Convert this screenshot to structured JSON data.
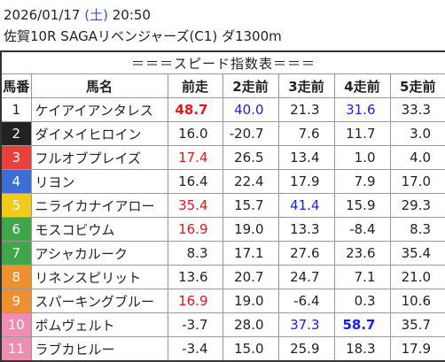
{
  "header": {
    "date": "2026/01/17",
    "weekday": "(土)",
    "time": "20:50",
    "race": "佐賀10R SAGAリベンジャーズ(C1) ダ1300m"
  },
  "table": {
    "title": "＝＝＝スピード指数表＝＝＝",
    "columns": [
      "馬番",
      "馬名",
      "前走",
      "2走前",
      "3走前",
      "4走前",
      "5走前"
    ],
    "rows": [
      {
        "no": "1",
        "frame_color": "#ffffff",
        "no_color": "#222222",
        "name": "ケイアイアンタレス",
        "indices": [
          {
            "text": "48.7",
            "color": "#e8141c",
            "bold": true
          },
          {
            "text": "40.0",
            "color": "#1a1aff"
          },
          "21.3",
          {
            "text": "31.6",
            "color": "#1a1aff"
          },
          "33.3"
        ]
      },
      {
        "no": "2",
        "frame_color": "#222222",
        "no_color": "#ffffff",
        "name": "ダイメイヒロイン",
        "indices": [
          "16.0",
          "-20.7",
          "7.6",
          "11.7",
          "3.0"
        ]
      },
      {
        "no": "3",
        "frame_color": "#e8403c",
        "no_color": "#ffffff",
        "name": "フルオブプレイズ",
        "indices": [
          {
            "text": "17.4",
            "color": "#e8141c"
          },
          "26.5",
          "13.4",
          "1.0",
          "4.0"
        ]
      },
      {
        "no": "4",
        "frame_color": "#3c6fd6",
        "no_color": "#ffffff",
        "name": "リヨン",
        "indices": [
          "16.4",
          "22.4",
          "17.9",
          "7.9",
          "17.0"
        ]
      },
      {
        "no": "5",
        "frame_color": "#f2cb1a",
        "no_color": "#ffffff",
        "name": "ニライカナイアロー",
        "indices": [
          {
            "text": "35.4",
            "color": "#e8141c"
          },
          "15.7",
          {
            "text": "41.4",
            "color": "#1a1aff"
          },
          "15.9",
          "29.3"
        ]
      },
      {
        "no": "6",
        "frame_color": "#3fa64a",
        "no_color": "#ffffff",
        "name": "モスコビウム",
        "indices": [
          {
            "text": "16.9",
            "color": "#e8141c"
          },
          "19.0",
          "13.3",
          "-8.4",
          "8.3"
        ]
      },
      {
        "no": "7",
        "frame_color": "#3fa64a",
        "no_color": "#ffffff",
        "name": "アシャカルーク",
        "indices": [
          "8.3",
          "17.1",
          "27.6",
          "23.6",
          "35.4"
        ]
      },
      {
        "no": "8",
        "frame_color": "#ef9030",
        "no_color": "#ffffff",
        "name": "リネンスピリット",
        "indices": [
          "13.6",
          "20.7",
          "24.7",
          "7.1",
          "21.0"
        ]
      },
      {
        "no": "9",
        "frame_color": "#ef9030",
        "no_color": "#ffffff",
        "name": "スパーキングブルー",
        "indices": [
          {
            "text": "16.9",
            "color": "#e8141c"
          },
          "19.0",
          "-6.4",
          "0.3",
          "10.6"
        ]
      },
      {
        "no": "10",
        "frame_color": "#f08cb0",
        "no_color": "#ffffff",
        "name": "ポムヴェルト",
        "indices": [
          "-3.7",
          "28.0",
          {
            "text": "37.3",
            "color": "#1a1aff"
          },
          {
            "text": "58.7",
            "color": "#1a1aff",
            "bold": true
          },
          "35.7"
        ]
      },
      {
        "no": "11",
        "frame_color": "#f08cb0",
        "no_color": "#ffffff",
        "name": "ラブカヒルー",
        "indices": [
          "-3.4",
          "15.0",
          "25.9",
          "18.3",
          "17.9"
        ]
      }
    ]
  }
}
